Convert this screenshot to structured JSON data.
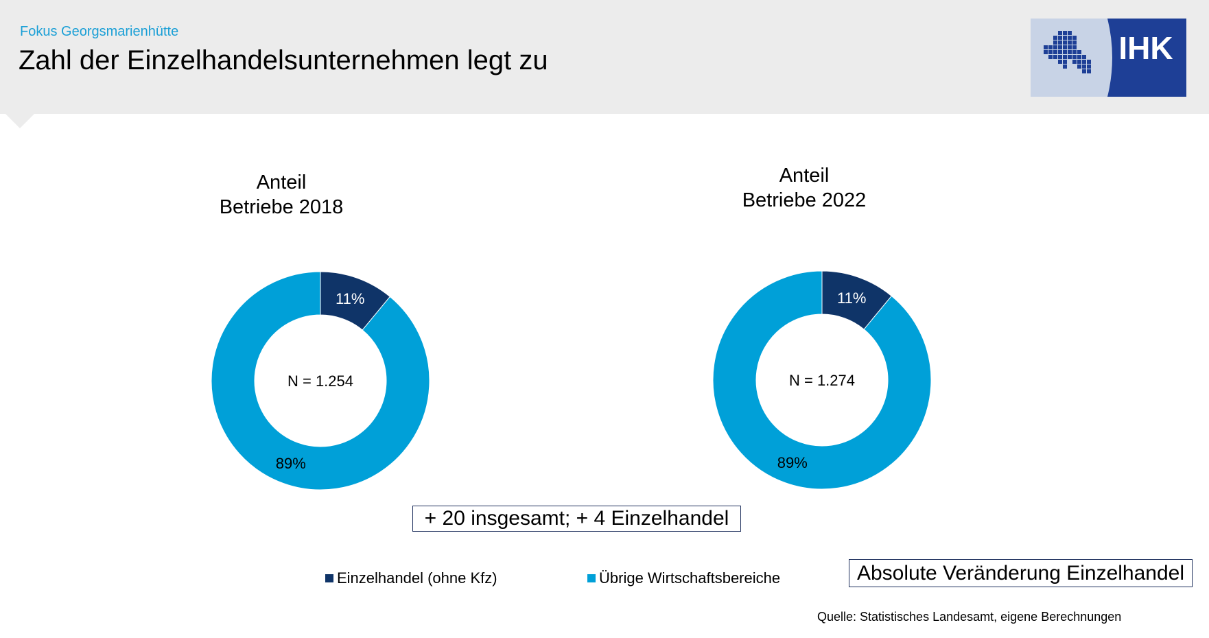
{
  "header": {
    "kicker": "Fokus Georgsmarienhütte",
    "title": "Zahl der Einzelhandelsunternehmen legt zu",
    "logo_text": "IHK"
  },
  "chart_data": [
    {
      "type": "pie",
      "title_lines": [
        "Anteil",
        "Betriebe 2018"
      ],
      "center_label": "N = 1.254",
      "slices": [
        {
          "label": "Einzelhandel (ohne Kfz)",
          "value": 11,
          "text": "11%"
        },
        {
          "label": "Übrige Wirtschaftsbereiche",
          "value": 89,
          "text": "89%"
        }
      ]
    },
    {
      "type": "pie",
      "title_lines": [
        "Anteil",
        "Betriebe 2022"
      ],
      "center_label": "N = 1.274",
      "slices": [
        {
          "label": "Einzelhandel (ohne Kfz)",
          "value": 11,
          "text": "11%"
        },
        {
          "label": "Übrige Wirtschaftsbereiche",
          "value": 89,
          "text": "89%"
        }
      ]
    }
  ],
  "legend": [
    {
      "label": "Einzelhandel (ohne Kfz)",
      "color": "#0f3468"
    },
    {
      "label": "Übrige Wirtschaftsbereiche",
      "color": "#00a0d8"
    }
  ],
  "change_note": "+ 20 insgesamt; + 4 Einzelhandel",
  "absolute_label": "Absolute Veränderung Einzelhandel",
  "source": "Quelle: Statistisches Landesamt, eigene Berechnungen",
  "colors": {
    "accent": "#1a9fd6",
    "dark": "#0f3468",
    "light": "#00a0d8",
    "header_bg": "#ececec",
    "logo_bg": "#c8d3e6",
    "logo_blue": "#1e3f96"
  }
}
